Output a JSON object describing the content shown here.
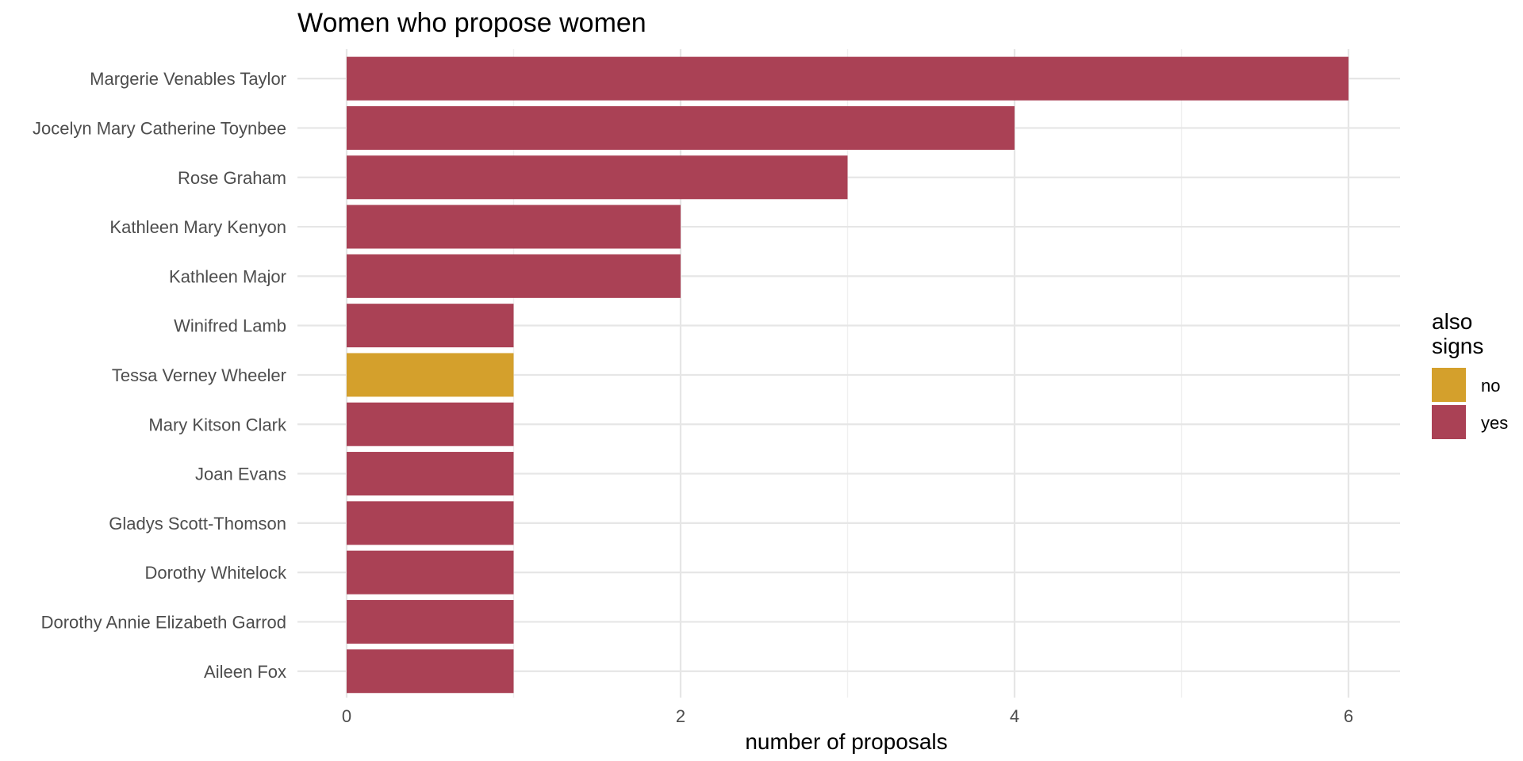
{
  "chart_data": {
    "type": "bar",
    "orientation": "horizontal",
    "title": "Women who propose women",
    "xlabel": "number of proposals",
    "ylabel": "",
    "xlim": [
      0,
      6.3
    ],
    "xticks": [
      0,
      2,
      4,
      6
    ],
    "grid": true,
    "legend": {
      "title_lines": [
        "also",
        "signs"
      ],
      "position": "right",
      "items": [
        {
          "label": "no",
          "color": "#D4A02C"
        },
        {
          "label": "yes",
          "color": "#AA4155"
        }
      ]
    },
    "categories": [
      "Margerie Venables Taylor",
      "Jocelyn Mary Catherine Toynbee",
      "Rose Graham",
      "Kathleen Mary Kenyon",
      "Kathleen Major",
      "Winifred Lamb",
      "Tessa Verney Wheeler",
      "Mary Kitson Clark",
      "Joan Evans",
      "Gladys Scott-Thomson",
      "Dorothy Whitelock",
      "Dorothy Annie Elizabeth Garrod",
      "Aileen Fox"
    ],
    "values": [
      6,
      4,
      3,
      2,
      2,
      1,
      1,
      1,
      1,
      1,
      1,
      1,
      1
    ],
    "also_signs": [
      "yes",
      "yes",
      "yes",
      "yes",
      "yes",
      "yes",
      "no",
      "yes",
      "yes",
      "yes",
      "yes",
      "yes",
      "yes"
    ]
  },
  "colors": {
    "yes": "#AA4155",
    "no": "#D4A02C",
    "grid_major": "#E6E6E6",
    "grid_minor": "#F0F0F0"
  }
}
